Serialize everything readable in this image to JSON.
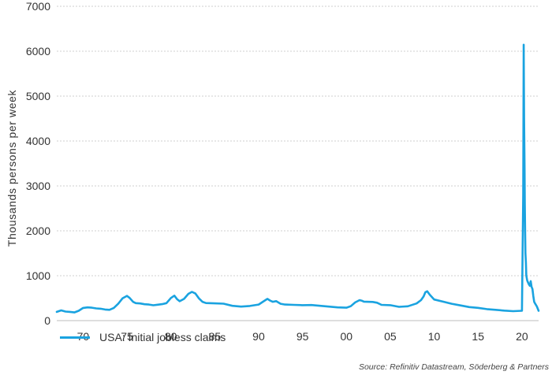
{
  "chart_data": {
    "type": "line",
    "title": "",
    "xlabel": "",
    "ylabel": "Thousands persons per week",
    "xlim": [
      1967.0,
      2021.9
    ],
    "ylim": [
      0,
      7000
    ],
    "y_ticks": [
      0,
      1000,
      2000,
      3000,
      4000,
      5000,
      6000,
      7000
    ],
    "y_tick_labels": [
      "0",
      "1000",
      "2000",
      "3000",
      "4000",
      "5000",
      "6000",
      "7000"
    ],
    "x_ticks": [
      1970,
      1975,
      1980,
      1985,
      1990,
      1995,
      2000,
      2005,
      2010,
      2015,
      2020
    ],
    "x_tick_labels": [
      "70",
      "75",
      "80",
      "85",
      "90",
      "95",
      "00",
      "05",
      "10",
      "15",
      "20"
    ],
    "grid": "horizontal-dotted",
    "legend_position": "bottom-left",
    "series": [
      {
        "name": "USA: Initial jobless claims",
        "color": "#1aa3e0",
        "x": [
          1967.0,
          1967.5,
          1968.0,
          1968.5,
          1969.0,
          1969.5,
          1970.0,
          1970.5,
          1971.0,
          1971.5,
          1972.0,
          1972.5,
          1973.0,
          1973.5,
          1974.0,
          1974.5,
          1975.0,
          1975.3,
          1975.7,
          1976.0,
          1976.5,
          1977.0,
          1977.5,
          1978.0,
          1978.5,
          1979.0,
          1979.5,
          1980.0,
          1980.4,
          1980.7,
          1981.0,
          1981.5,
          1982.0,
          1982.4,
          1982.8,
          1983.2,
          1983.6,
          1984.0,
          1985.0,
          1986.0,
          1987.0,
          1988.0,
          1989.0,
          1990.0,
          1990.5,
          1991.0,
          1991.3,
          1991.6,
          1992.0,
          1992.5,
          1993.0,
          1994.0,
          1995.0,
          1996.0,
          1997.0,
          1998.0,
          1999.0,
          2000.0,
          2000.5,
          2001.0,
          2001.5,
          2001.8,
          2002.0,
          2003.0,
          2003.5,
          2004.0,
          2005.0,
          2006.0,
          2007.0,
          2008.0,
          2008.5,
          2008.8,
          2009.0,
          2009.2,
          2009.5,
          2010.0,
          2011.0,
          2012.0,
          2013.0,
          2014.0,
          2015.0,
          2016.0,
          2017.0,
          2018.0,
          2019.0,
          2020.0,
          2020.15,
          2020.2,
          2020.25,
          2020.3,
          2020.33,
          2020.36,
          2020.4,
          2020.45,
          2020.5,
          2020.6,
          2020.7,
          2020.8,
          2020.9,
          2021.0,
          2021.1,
          2021.2,
          2021.3,
          2021.4,
          2021.5,
          2021.7,
          2021.9
        ],
        "values": [
          200,
          230,
          200,
          190,
          185,
          220,
          280,
          300,
          290,
          270,
          260,
          250,
          240,
          280,
          380,
          500,
          550,
          500,
          420,
          390,
          380,
          370,
          360,
          340,
          350,
          370,
          390,
          500,
          560,
          480,
          430,
          480,
          600,
          640,
          600,
          500,
          420,
          390,
          380,
          380,
          330,
          310,
          330,
          360,
          420,
          480,
          450,
          420,
          430,
          380,
          360,
          350,
          340,
          350,
          330,
          310,
          300,
          290,
          320,
          400,
          460,
          440,
          420,
          420,
          400,
          350,
          340,
          310,
          320,
          380,
          460,
          540,
          630,
          650,
          580,
          470,
          420,
          380,
          340,
          300,
          280,
          260,
          240,
          220,
          215,
          220,
          2800,
          6140,
          4500,
          3400,
          2600,
          2000,
          1500,
          1300,
          1000,
          900,
          850,
          800,
          780,
          880,
          750,
          700,
          550,
          420,
          380,
          320,
          220
        ]
      }
    ],
    "annotations": [
      "Source: Refinitiv Datastream, Söderberg & Partners"
    ]
  }
}
